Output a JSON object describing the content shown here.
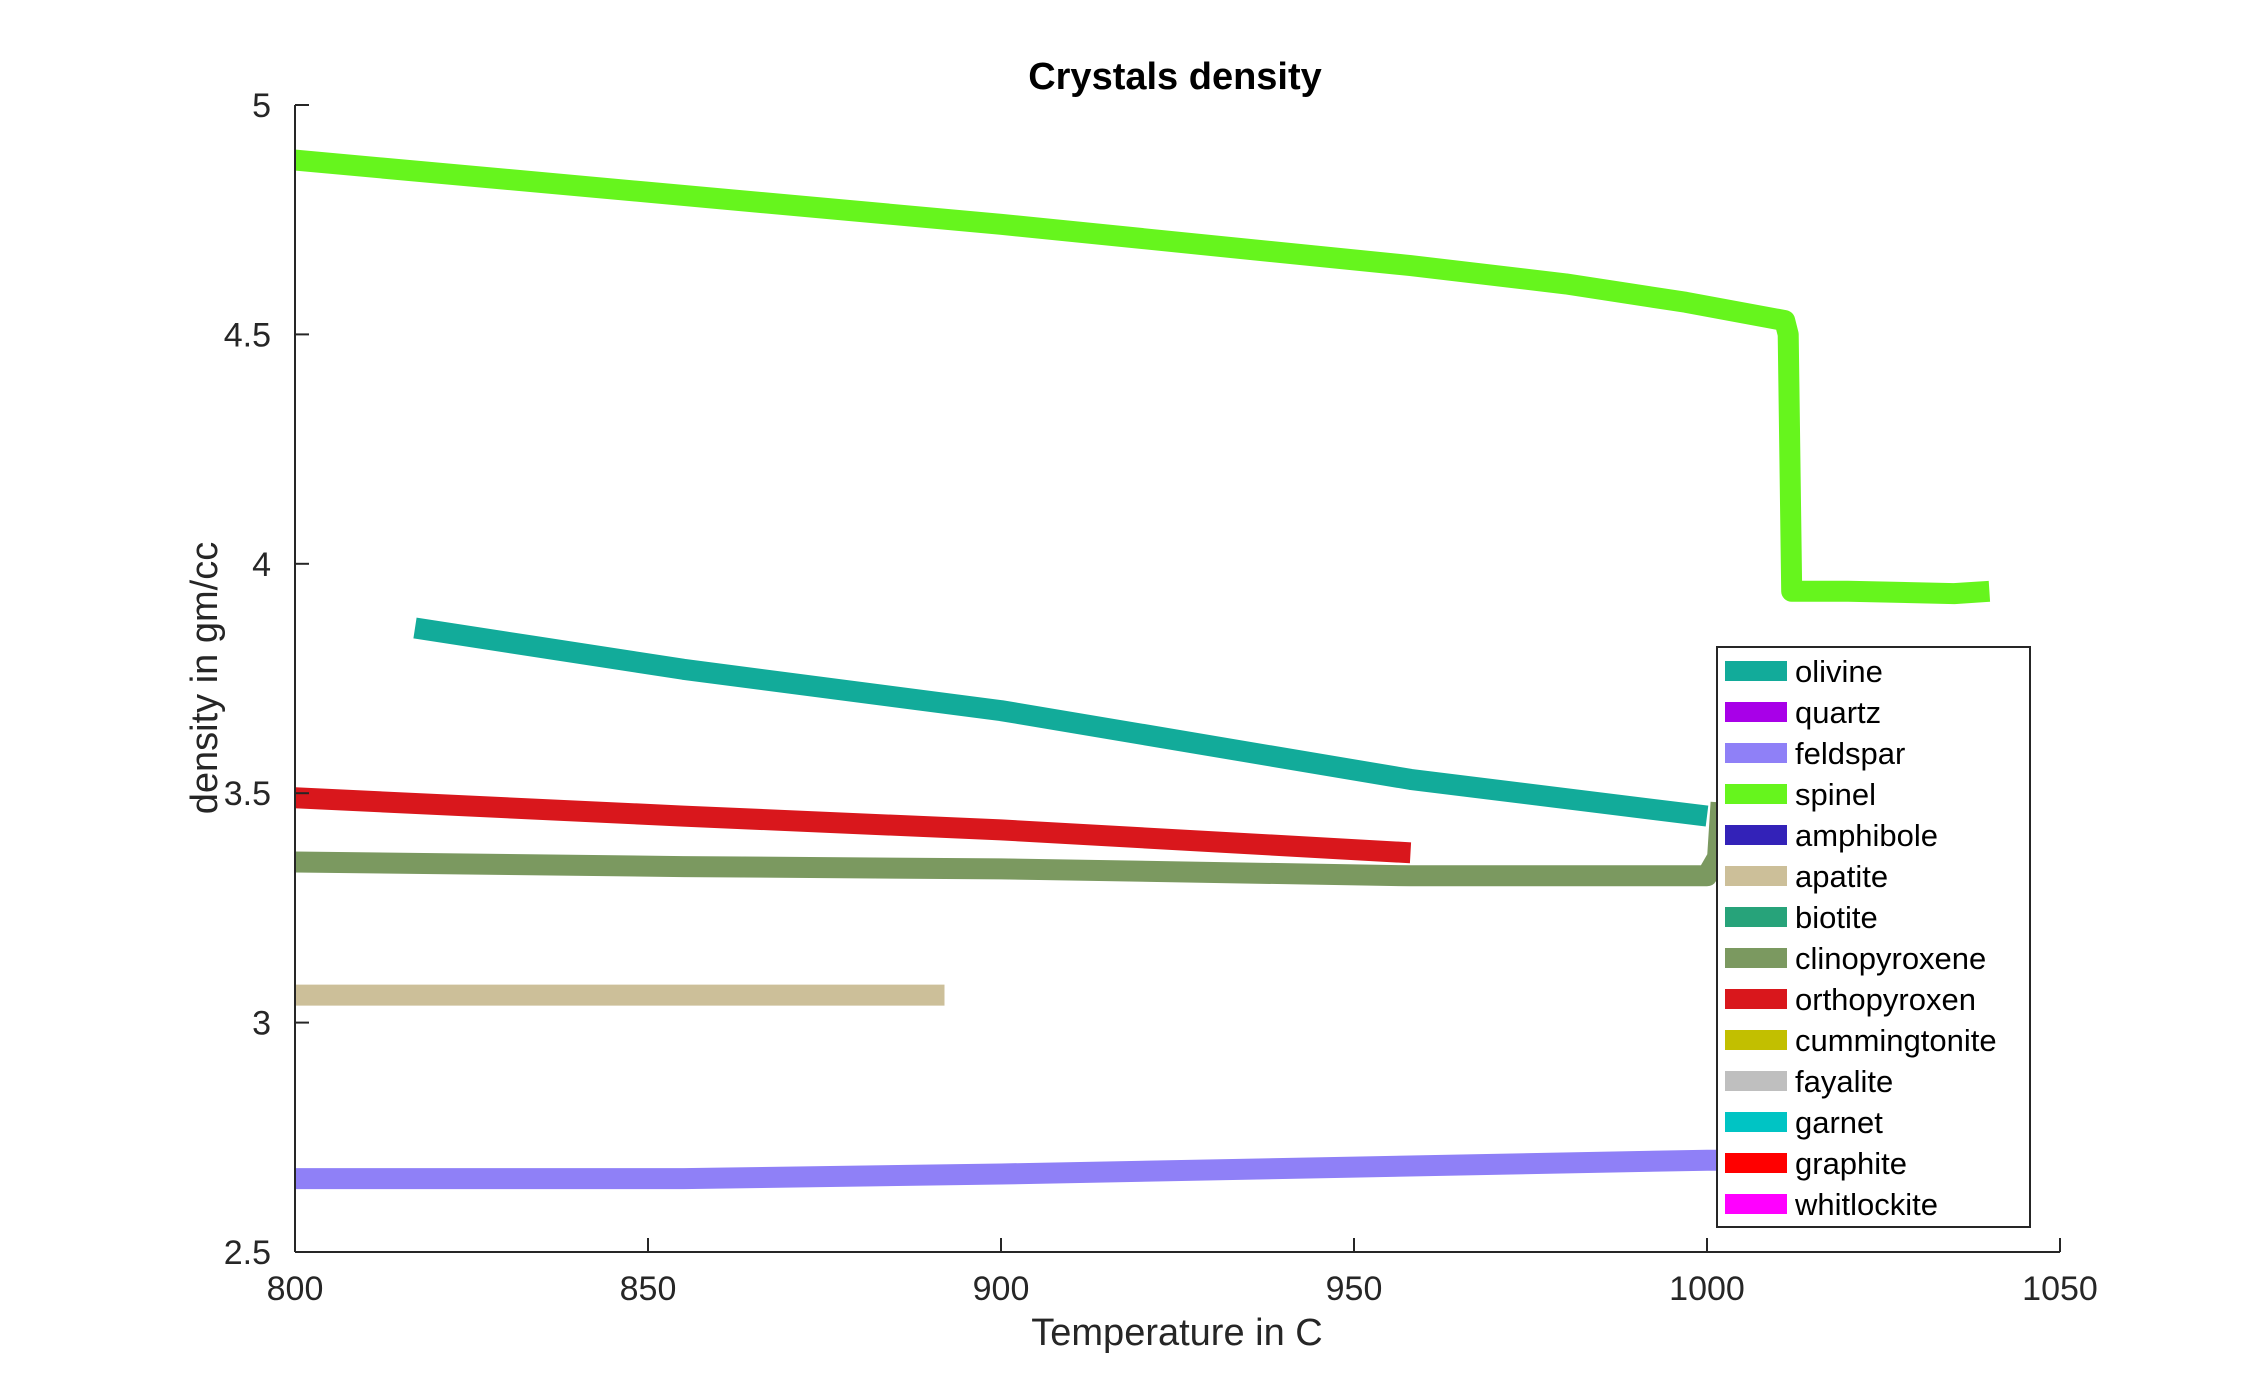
{
  "chart_data": {
    "type": "line",
    "title": "Crystals density",
    "xlabel": "Temperature in C",
    "ylabel": "density in gm/cc",
    "xlim": [
      800,
      1050
    ],
    "ylim": [
      2.5,
      5
    ],
    "xticks": [
      800,
      850,
      900,
      950,
      1000,
      1050
    ],
    "yticks": [
      2.5,
      3,
      3.5,
      4,
      4.5,
      5
    ],
    "xtick_labels": [
      "800",
      "850",
      "900",
      "950",
      "1000",
      "1050"
    ],
    "ytick_labels": [
      "2.5",
      "3",
      "3.5",
      "4",
      "4.5",
      "5"
    ],
    "grid": false,
    "legend_position": "inside-right",
    "series": [
      {
        "name": "olivine",
        "color": "#12ab9a",
        "x": [
          817,
          855,
          900,
          958,
          1000
        ],
        "y": [
          3.86,
          3.77,
          3.68,
          3.53,
          3.45
        ]
      },
      {
        "name": "quartz",
        "color": "#a800e8",
        "x": [],
        "y": []
      },
      {
        "name": "feldspar",
        "color": "#8f80f7",
        "x": [
          800,
          855,
          900,
          950,
          1000,
          1002
        ],
        "y": [
          2.66,
          2.66,
          2.67,
          2.685,
          2.7,
          2.7
        ]
      },
      {
        "name": "spinel",
        "color": "#66f51d",
        "x": [
          800,
          850,
          900,
          958,
          980,
          997,
          1011,
          1011.5,
          1012,
          1020,
          1035,
          1040
        ],
        "y": [
          4.88,
          4.81,
          4.74,
          4.65,
          4.61,
          4.57,
          4.53,
          4.5,
          3.94,
          3.94,
          3.935,
          3.94
        ]
      },
      {
        "name": "amphibole",
        "color": "#3322b8",
        "x": [],
        "y": []
      },
      {
        "name": "apatite",
        "color": "#ccbf99",
        "x": [
          800,
          892
        ],
        "y": [
          3.06,
          3.06
        ]
      },
      {
        "name": "biotite",
        "color": "#27a37a",
        "x": [],
        "y": []
      },
      {
        "name": "clinopyroxene",
        "color": "#7b9960",
        "x": [
          800,
          855,
          900,
          958,
          1000,
          1001.5,
          1002
        ],
        "y": [
          3.35,
          3.34,
          3.335,
          3.32,
          3.32,
          3.36,
          3.48
        ]
      },
      {
        "name": "orthopyroxen",
        "color": "#d9171c",
        "x": [
          800,
          855,
          900,
          958
        ],
        "y": [
          3.49,
          3.45,
          3.42,
          3.37
        ]
      },
      {
        "name": "cummingtonite",
        "color": "#c2bf00",
        "x": [],
        "y": []
      },
      {
        "name": "fayalite",
        "color": "#bfbfbf",
        "x": [],
        "y": []
      },
      {
        "name": "garnet",
        "color": "#00c4c4",
        "x": [],
        "y": []
      },
      {
        "name": "graphite",
        "color": "#ff0000",
        "x": [],
        "y": []
      },
      {
        "name": "whitlockite",
        "color": "#ff00ff",
        "x": [],
        "y": []
      }
    ]
  }
}
